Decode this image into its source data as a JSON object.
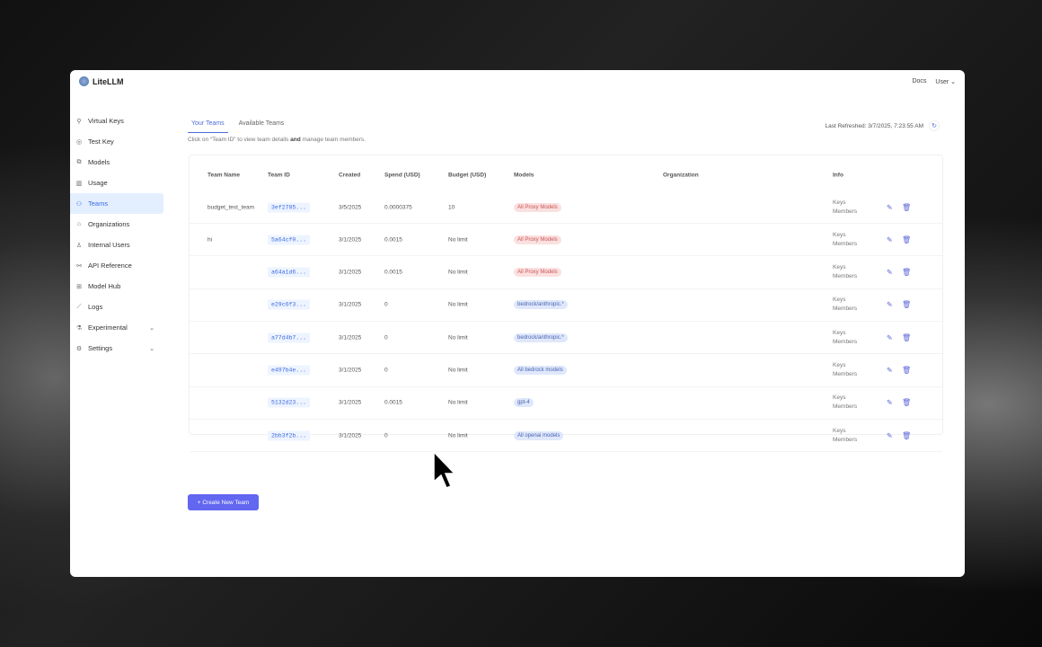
{
  "app": {
    "name": "LiteLLM"
  },
  "header": {
    "docs": "Docs",
    "user": "User"
  },
  "sidebar": {
    "items": [
      {
        "label": "Virtual Keys",
        "icon": "key-icon",
        "glyph": "⚲"
      },
      {
        "label": "Test Key",
        "icon": "play-circle-icon",
        "glyph": "◎"
      },
      {
        "label": "Models",
        "icon": "block-icon",
        "glyph": "⧉"
      },
      {
        "label": "Usage",
        "icon": "bar-chart-icon",
        "glyph": "▥"
      },
      {
        "label": "Teams",
        "icon": "team-icon",
        "glyph": "⚇",
        "active": true
      },
      {
        "label": "Organizations",
        "icon": "bank-icon",
        "glyph": "⌂"
      },
      {
        "label": "Internal Users",
        "icon": "user-icon",
        "glyph": "♙"
      },
      {
        "label": "API Reference",
        "icon": "api-icon",
        "glyph": "⚯"
      },
      {
        "label": "Model Hub",
        "icon": "apps-icon",
        "glyph": "⊞"
      },
      {
        "label": "Logs",
        "icon": "line-chart-icon",
        "glyph": "⟋"
      },
      {
        "label": "Experimental",
        "icon": "experiment-icon",
        "glyph": "⚗",
        "chevron": true
      },
      {
        "label": "Settings",
        "icon": "settings-icon",
        "glyph": "⚙",
        "chevron": true
      }
    ]
  },
  "tabs": [
    {
      "label": "Your Teams",
      "active": true
    },
    {
      "label": "Available Teams"
    }
  ],
  "hint": {
    "pre": "Click on “Team ID” to view team details ",
    "bold": "and",
    "post": " manage team members."
  },
  "refresh": {
    "label": "Last Refreshed: 3/7/2025, 7:23:55 AM"
  },
  "table": {
    "headers": [
      "Team Name",
      "Team ID",
      "Created",
      "Spend (USD)",
      "Budget (USD)",
      "Models",
      "Organization",
      "Info"
    ],
    "rows": [
      {
        "name": "budget_test_team",
        "id": "3ef2785...",
        "created": "3/5/2025",
        "spend": "0.0000375",
        "budget": "10",
        "model": "All Proxy Models",
        "color": "red"
      },
      {
        "name": "hi",
        "id": "5a64cf0...",
        "created": "3/1/2025",
        "spend": "0.0015",
        "budget": "No limit",
        "model": "All Proxy Models",
        "color": "red"
      },
      {
        "name": "",
        "id": "a64a1d6...",
        "created": "3/1/2025",
        "spend": "0.0015",
        "budget": "No limit",
        "model": "All Proxy Models",
        "color": "red"
      },
      {
        "name": "",
        "id": "e29c6f3...",
        "created": "3/1/2025",
        "spend": "0",
        "budget": "No limit",
        "model": "bedrock/anthropic.*",
        "color": "blue"
      },
      {
        "name": "",
        "id": "a77d4b7...",
        "created": "3/1/2025",
        "spend": "0",
        "budget": "No limit",
        "model": "bedrock/anthropic.*",
        "color": "blue"
      },
      {
        "name": "",
        "id": "e497b4e...",
        "created": "3/1/2025",
        "spend": "0",
        "budget": "No limit",
        "model": "All bedrock models",
        "color": "blue"
      },
      {
        "name": "",
        "id": "5132d23...",
        "created": "3/1/2025",
        "spend": "0.0015",
        "budget": "No limit",
        "model": "gpt-4",
        "color": "blue"
      },
      {
        "name": "",
        "id": "2bb3f2b...",
        "created": "3/1/2025",
        "spend": "0",
        "budget": "No limit",
        "model": "All openai models",
        "color": "blue"
      }
    ],
    "info_keys": "Keys",
    "info_members": "Members"
  },
  "create_button": "+ Create New Team"
}
